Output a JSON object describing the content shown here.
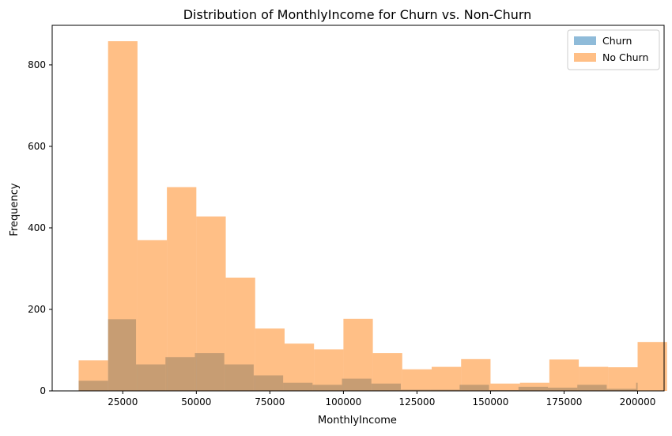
{
  "chart_data": {
    "type": "bar",
    "histogram": true,
    "title": "Distribution of MonthlyIncome for Churn vs. Non-Churn",
    "xlabel": "MonthlyIncome",
    "ylabel": "Frequency",
    "xlim": [
      1000,
      209000
    ],
    "ylim": [
      0,
      897
    ],
    "xticks": [
      25000,
      50000,
      75000,
      100000,
      125000,
      150000,
      175000,
      200000
    ],
    "xtick_labels": [
      "25000",
      "50000",
      "75000",
      "100000",
      "125000",
      "150000",
      "175000",
      "200000"
    ],
    "yticks": [
      0,
      200,
      400,
      600,
      800
    ],
    "ytick_labels": [
      "0",
      "200",
      "400",
      "600",
      "800"
    ],
    "legend_position": "top-right",
    "series": [
      {
        "name": "Churn",
        "color": "#1f77b4",
        "opacity": 0.5,
        "bins": [
          {
            "x0": 10000,
            "x1": 20000,
            "value": 25
          },
          {
            "x0": 20000,
            "x1": 29500,
            "value": 176
          },
          {
            "x0": 29500,
            "x1": 39500,
            "value": 65
          },
          {
            "x0": 39500,
            "x1": 49500,
            "value": 83
          },
          {
            "x0": 49500,
            "x1": 59500,
            "value": 93
          },
          {
            "x0": 59500,
            "x1": 69500,
            "value": 65
          },
          {
            "x0": 69500,
            "x1": 79500,
            "value": 38
          },
          {
            "x0": 79500,
            "x1": 89500,
            "value": 20
          },
          {
            "x0": 89500,
            "x1": 99500,
            "value": 15
          },
          {
            "x0": 99500,
            "x1": 109500,
            "value": 30
          },
          {
            "x0": 109500,
            "x1": 119500,
            "value": 18
          },
          {
            "x0": 119500,
            "x1": 129500,
            "value": 3
          },
          {
            "x0": 129500,
            "x1": 139500,
            "value": 3
          },
          {
            "x0": 139500,
            "x1": 149500,
            "value": 15
          },
          {
            "x0": 149500,
            "x1": 159500,
            "value": 2
          },
          {
            "x0": 159500,
            "x1": 169500,
            "value": 10
          },
          {
            "x0": 169500,
            "x1": 179500,
            "value": 8
          },
          {
            "x0": 179500,
            "x1": 189500,
            "value": 15
          },
          {
            "x0": 189500,
            "x1": 199500,
            "value": 5
          },
          {
            "x0": 199500,
            "x1": 200000,
            "value": 20
          }
        ]
      },
      {
        "name": "No Churn",
        "color": "#ff7f0e",
        "opacity": 0.5,
        "bins": [
          {
            "x0": 10000,
            "x1": 20000,
            "value": 75
          },
          {
            "x0": 20000,
            "x1": 30000,
            "value": 858
          },
          {
            "x0": 30000,
            "x1": 40000,
            "value": 370
          },
          {
            "x0": 40000,
            "x1": 50000,
            "value": 500
          },
          {
            "x0": 50000,
            "x1": 60000,
            "value": 428
          },
          {
            "x0": 60000,
            "x1": 70000,
            "value": 278
          },
          {
            "x0": 70000,
            "x1": 80000,
            "value": 153
          },
          {
            "x0": 80000,
            "x1": 90000,
            "value": 116
          },
          {
            "x0": 90000,
            "x1": 100000,
            "value": 102
          },
          {
            "x0": 100000,
            "x1": 110000,
            "value": 177
          },
          {
            "x0": 110000,
            "x1": 120000,
            "value": 93
          },
          {
            "x0": 120000,
            "x1": 130000,
            "value": 53
          },
          {
            "x0": 130000,
            "x1": 140000,
            "value": 59
          },
          {
            "x0": 140000,
            "x1": 150000,
            "value": 78
          },
          {
            "x0": 150000,
            "x1": 160000,
            "value": 18
          },
          {
            "x0": 160000,
            "x1": 170000,
            "value": 20
          },
          {
            "x0": 170000,
            "x1": 180000,
            "value": 77
          },
          {
            "x0": 180000,
            "x1": 190000,
            "value": 59
          },
          {
            "x0": 190000,
            "x1": 200000,
            "value": 58
          },
          {
            "x0": 200000,
            "x1": 210000,
            "value": 120
          }
        ]
      }
    ]
  }
}
